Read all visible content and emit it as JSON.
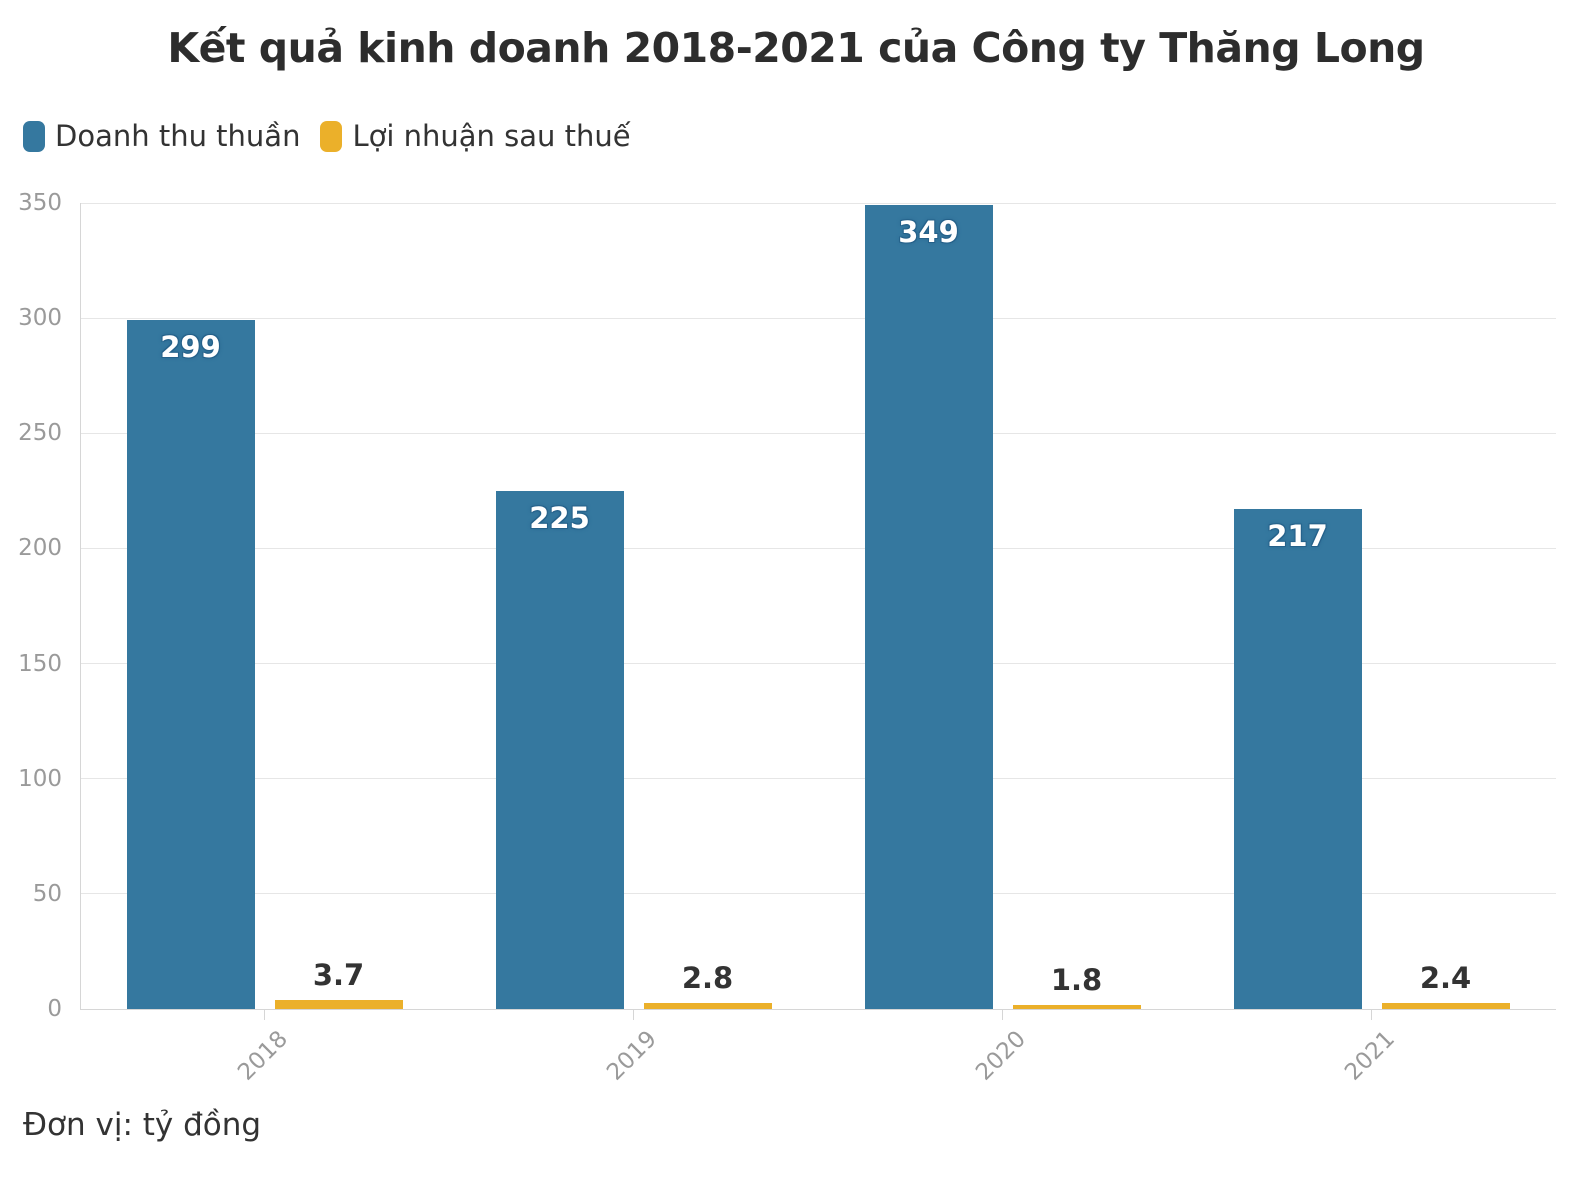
{
  "page": {
    "title": "Kết quả kinh doanh 2018-2021 của Công ty Thăng Long",
    "unit_note": "Đơn vị: tỷ đồng"
  },
  "theme": {
    "background": "#ffffff",
    "title_color": "#2d2d2d",
    "text_color": "#333333",
    "axis_label_color": "#9a9a9a",
    "gridline_color": "#e6e6e6",
    "axis_line_color": "#d6d6d6",
    "value_label_light": "#ffffff",
    "value_label_outline": "#25618a",
    "value_label_dark": "#333333"
  },
  "chart_data": {
    "type": "bar",
    "title": "Kết quả kinh doanh 2018-2021 của Công ty Thăng Long",
    "categories": [
      "2018",
      "2019",
      "2020",
      "2021"
    ],
    "series": [
      {
        "name": "Doanh thu thuần",
        "color": "#35789F",
        "values": [
          299,
          225,
          349,
          217
        ],
        "value_label_style": "light-inside-top"
      },
      {
        "name": "Lợi nhuận sau thuế",
        "color": "#EBB02A",
        "values": [
          3.7,
          2.8,
          1.8,
          2.4
        ],
        "value_label_style": "dark-above"
      }
    ],
    "xlabel": "",
    "ylabel": "",
    "ylim": [
      0,
      350
    ],
    "yticks": [
      0,
      50,
      100,
      150,
      200,
      250,
      300,
      350
    ],
    "grid": true,
    "x_tick_marks": "category-centers",
    "x_label_rotation": -45,
    "legend_position": "top-left",
    "unit": "tỷ đồng"
  }
}
